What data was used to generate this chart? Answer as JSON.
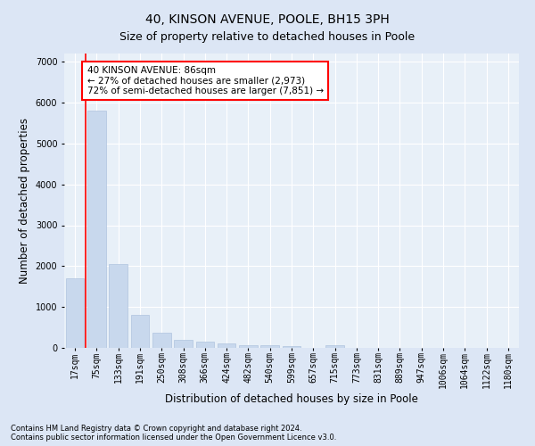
{
  "title": "40, KINSON AVENUE, POOLE, BH15 3PH",
  "subtitle": "Size of property relative to detached houses in Poole",
  "xlabel": "Distribution of detached houses by size in Poole",
  "ylabel": "Number of detached properties",
  "categories": [
    "17sqm",
    "75sqm",
    "133sqm",
    "191sqm",
    "250sqm",
    "308sqm",
    "366sqm",
    "424sqm",
    "482sqm",
    "540sqm",
    "599sqm",
    "657sqm",
    "715sqm",
    "773sqm",
    "831sqm",
    "889sqm",
    "947sqm",
    "1006sqm",
    "1064sqm",
    "1122sqm",
    "1180sqm"
  ],
  "values": [
    1700,
    5800,
    2050,
    800,
    380,
    200,
    150,
    100,
    70,
    60,
    50,
    0,
    60,
    0,
    0,
    0,
    0,
    0,
    0,
    0,
    0
  ],
  "bar_color": "#c8d8ed",
  "bar_edge_color": "#b0c4de",
  "vline_color": "red",
  "annotation_text": "40 KINSON AVENUE: 86sqm\n← 27% of detached houses are smaller (2,973)\n72% of semi-detached houses are larger (7,851) →",
  "annotation_box_color": "white",
  "annotation_box_edge_color": "red",
  "ylim": [
    0,
    7200
  ],
  "yticks": [
    0,
    1000,
    2000,
    3000,
    4000,
    5000,
    6000,
    7000
  ],
  "footer_line1": "Contains HM Land Registry data © Crown copyright and database right 2024.",
  "footer_line2": "Contains public sector information licensed under the Open Government Licence v3.0.",
  "bg_color": "#dce6f5",
  "plot_bg_color": "#e8f0f8",
  "title_fontsize": 10,
  "subtitle_fontsize": 9,
  "axis_label_fontsize": 8.5,
  "tick_fontsize": 7
}
